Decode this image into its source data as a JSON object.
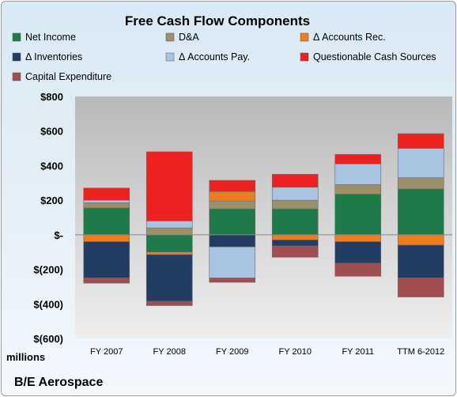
{
  "chart_data": {
    "type": "bar",
    "stacked": true,
    "title": "Free Cash Flow Components",
    "categories": [
      "FY 2007",
      "FY 2008",
      "FY 2009",
      "FY 2010",
      "FY 2011",
      "TTM 6-2012"
    ],
    "ylim": [
      -600,
      800
    ],
    "yticks": [
      800,
      600,
      400,
      200,
      0,
      -200,
      -400,
      -600
    ],
    "ytick_labels": [
      "$800",
      "$600",
      "$400",
      "$200",
      "$-",
      "$(200)",
      "$(400)",
      "$(600)"
    ],
    "units_label": "millions",
    "legend_placement": "top",
    "grid": false,
    "series": [
      {
        "name": "Net Income",
        "color": "#1f7a4a",
        "values": [
          155,
          -100,
          150,
          150,
          235,
          265
        ]
      },
      {
        "name": "D&A",
        "color": "#9b9068",
        "values": [
          30,
          40,
          45,
          50,
          55,
          65
        ]
      },
      {
        "name": "Δ Accounts Rec.",
        "color": "#ef7c1d",
        "values": [
          -40,
          -15,
          55,
          -30,
          -40,
          -60
        ]
      },
      {
        "name": "Δ Inventories",
        "color": "#233c62",
        "values": [
          -210,
          -270,
          -70,
          -35,
          -125,
          -190
        ]
      },
      {
        "name": "Δ Accounts Pay.",
        "color": "#a9c3e2",
        "values": [
          15,
          40,
          -180,
          75,
          120,
          170
        ]
      },
      {
        "name": "Questionable Cash Sources",
        "color": "#ee2020",
        "values": [
          70,
          400,
          65,
          75,
          55,
          85
        ]
      },
      {
        "name": "Capital Expenditure",
        "color": "#a24e50",
        "values": [
          -30,
          -25,
          -25,
          -65,
          -75,
          -110
        ]
      }
    ]
  },
  "footer": "B/E Aerospace"
}
